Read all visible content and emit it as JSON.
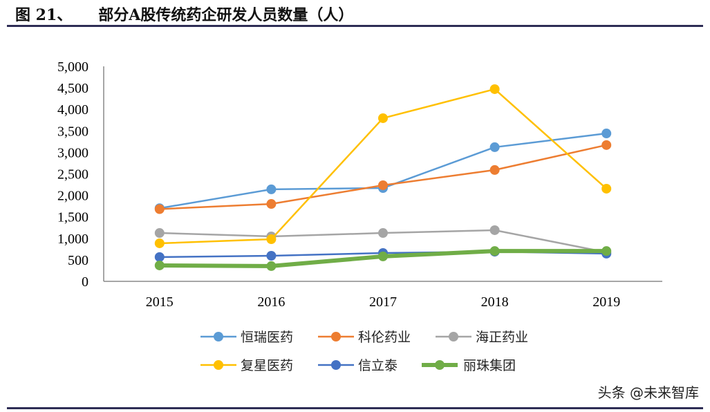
{
  "figure": {
    "label": "图 21、",
    "title": "部分A股传统药企研发人员数量（人）"
  },
  "watermark": "头条 @未来智库",
  "chart_data": {
    "type": "line",
    "title": "部分A股传统药企研发人员数量（人）",
    "xlabel": "",
    "ylabel": "",
    "categories": [
      "2015",
      "2016",
      "2017",
      "2018",
      "2019"
    ],
    "ylim": [
      0,
      5000
    ],
    "yticks": [
      0,
      500,
      1000,
      1500,
      2000,
      2500,
      3000,
      3500,
      4000,
      4500,
      5000
    ],
    "ytick_labels": [
      "0",
      "500",
      "1,000",
      "1,500",
      "2,000",
      "2,500",
      "3,000",
      "3,500",
      "4,000",
      "4,500",
      "5,000"
    ],
    "grid": false,
    "legend_position": "bottom",
    "series": [
      {
        "name": "恒瑞医药",
        "color": "#5b9bd5",
        "values": [
          1700,
          2140,
          2170,
          3120,
          3440
        ]
      },
      {
        "name": "科伦药业",
        "color": "#ed7d31",
        "values": [
          1680,
          1800,
          2235,
          2590,
          3170
        ]
      },
      {
        "name": "海正药业",
        "color": "#a5a5a5",
        "values": [
          1125,
          1045,
          1125,
          1190,
          675
        ]
      },
      {
        "name": "复星医药",
        "color": "#ffc000",
        "values": [
          885,
          980,
          3795,
          4470,
          2155
        ]
      },
      {
        "name": "信立泰",
        "color": "#4472c4",
        "values": [
          565,
          595,
          660,
          690,
          645
        ]
      },
      {
        "name": "丽珠集团",
        "color": "#70ad47",
        "values": [
          370,
          355,
          580,
          705,
          705
        ]
      }
    ]
  }
}
